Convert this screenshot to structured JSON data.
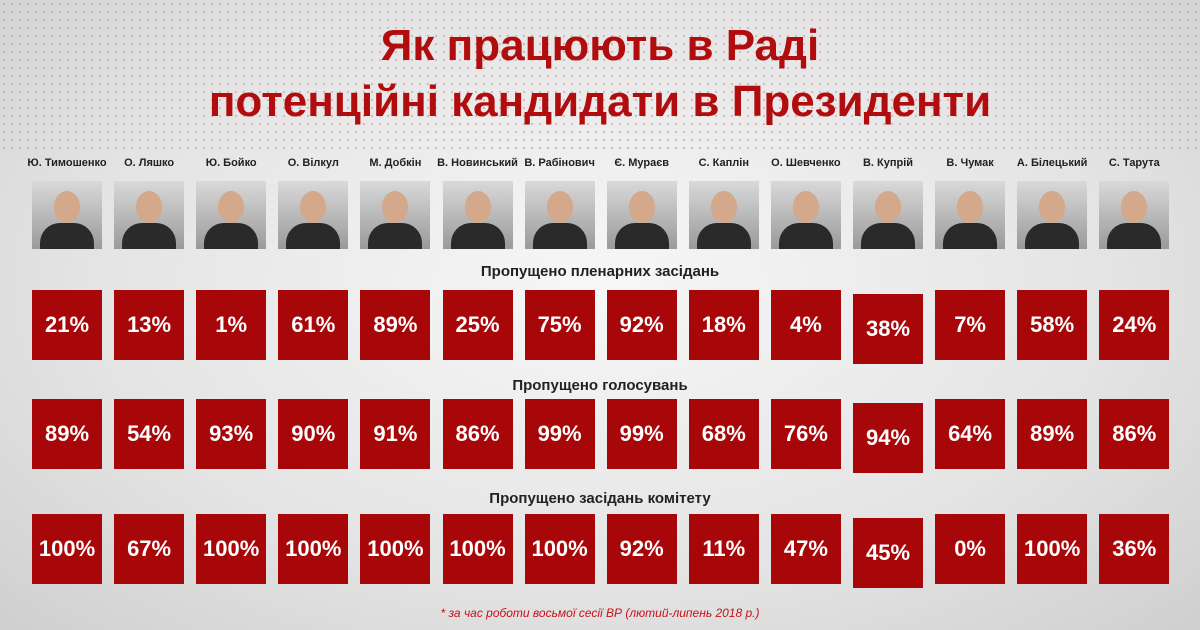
{
  "title": {
    "line1": "Як працюють в Раді",
    "line2": "потенційні кандидати в Президенти"
  },
  "candidates": [
    "Ю. Тимошенко",
    "О. Ляшко",
    "Ю. Бойко",
    "О. Вілкул",
    "М. Добкін",
    "В. Новинський",
    "В. Рабінович",
    "Є. Мураєв",
    "С. Каплін",
    "О. Шевченко",
    "В. Купрій",
    "В. Чумак",
    "А. Білецький",
    "С. Тарута"
  ],
  "rows": [
    {
      "title": "Пропущено пленарних засідань",
      "values": [
        "21%",
        "13%",
        "1%",
        "61%",
        "89%",
        "25%",
        "75%",
        "92%",
        "18%",
        "4%",
        "38%",
        "7%",
        "58%",
        "24%"
      ]
    },
    {
      "title": "Пропущено голосувань",
      "values": [
        "89%",
        "54%",
        "93%",
        "90%",
        "91%",
        "86%",
        "99%",
        "99%",
        "68%",
        "76%",
        "94%",
        "64%",
        "89%",
        "86%"
      ]
    },
    {
      "title": "Пропущено засідань комітету",
      "values": [
        "100%",
        "67%",
        "100%",
        "100%",
        "100%",
        "100%",
        "100%",
        "92%",
        "11%",
        "47%",
        "45%",
        "0%",
        "100%",
        "36%"
      ]
    }
  ],
  "footnote": "* за час роботи восьмої сесії ВР (лютий-липень 2018 р.)",
  "colors": {
    "accent": "#a80709",
    "title": "#b10d0f"
  }
}
